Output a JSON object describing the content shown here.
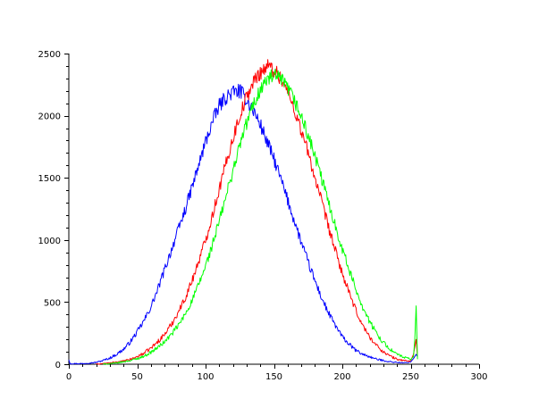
{
  "chart_data": {
    "type": "line",
    "title": "",
    "xlabel": "",
    "ylabel": "",
    "xlim": [
      0,
      300
    ],
    "ylim": [
      0,
      2500
    ],
    "grid": false,
    "legend": "none",
    "x_ticks": [
      "0",
      "50",
      "100",
      "150",
      "200",
      "250",
      "300"
    ],
    "y_ticks": [
      "0",
      "500",
      "1000",
      "1500",
      "2000",
      "2500"
    ],
    "x_tick_values": [
      0,
      50,
      100,
      150,
      200,
      250,
      300
    ],
    "y_tick_values": [
      0,
      500,
      1000,
      1500,
      2000,
      2500
    ],
    "x_minor_step": 10,
    "y_minor_step": 100,
    "series": [
      {
        "color": "#0000ff",
        "x": [
          0,
          1,
          5,
          10,
          15,
          20,
          25,
          30,
          35,
          40,
          45,
          50,
          55,
          60,
          65,
          70,
          75,
          80,
          85,
          90,
          95,
          100,
          105,
          110,
          115,
          120,
          125,
          130,
          135,
          140,
          145,
          150,
          155,
          160,
          165,
          170,
          175,
          180,
          185,
          190,
          195,
          200,
          205,
          210,
          215,
          220,
          225,
          230,
          235,
          240,
          245,
          250,
          252,
          254,
          255
        ],
        "y": [
          40,
          5,
          5,
          5,
          10,
          15,
          30,
          50,
          80,
          120,
          180,
          260,
          350,
          460,
          600,
          760,
          920,
          1080,
          1240,
          1420,
          1600,
          1790,
          1950,
          2080,
          2150,
          2190,
          2200,
          2130,
          2040,
          1930,
          1790,
          1650,
          1490,
          1320,
          1150,
          980,
          820,
          670,
          530,
          410,
          310,
          220,
          160,
          110,
          80,
          60,
          40,
          30,
          20,
          15,
          10,
          20,
          45,
          80,
          60
        ]
      },
      {
        "color": "#ff0000",
        "x": [
          20,
          30,
          40,
          45,
          50,
          55,
          60,
          65,
          70,
          75,
          80,
          85,
          90,
          95,
          100,
          105,
          110,
          115,
          120,
          125,
          130,
          135,
          140,
          145,
          150,
          155,
          160,
          165,
          170,
          175,
          180,
          185,
          190,
          195,
          200,
          205,
          210,
          215,
          220,
          225,
          230,
          235,
          240,
          245,
          250,
          252,
          254,
          255
        ],
        "y": [
          0,
          10,
          25,
          40,
          60,
          90,
          130,
          180,
          240,
          320,
          420,
          530,
          670,
          830,
          1000,
          1200,
          1410,
          1620,
          1820,
          2000,
          2150,
          2270,
          2350,
          2400,
          2370,
          2300,
          2190,
          2050,
          1880,
          1700,
          1500,
          1300,
          1100,
          910,
          730,
          570,
          430,
          310,
          220,
          150,
          100,
          65,
          40,
          30,
          25,
          80,
          200,
          60
        ]
      },
      {
        "color": "#00ff00",
        "x": [
          25,
          35,
          40,
          45,
          50,
          55,
          60,
          65,
          70,
          75,
          80,
          85,
          90,
          95,
          100,
          105,
          110,
          115,
          120,
          125,
          130,
          135,
          140,
          145,
          150,
          155,
          160,
          165,
          170,
          175,
          180,
          185,
          190,
          195,
          200,
          205,
          210,
          215,
          220,
          225,
          230,
          235,
          240,
          245,
          250,
          252,
          253,
          254,
          255
        ],
        "y": [
          0,
          10,
          20,
          30,
          45,
          65,
          95,
          135,
          180,
          240,
          310,
          400,
          510,
          640,
          790,
          960,
          1150,
          1350,
          1560,
          1760,
          1940,
          2090,
          2210,
          2290,
          2320,
          2290,
          2220,
          2120,
          1990,
          1840,
          1670,
          1490,
          1300,
          1110,
          930,
          760,
          600,
          460,
          340,
          250,
          175,
          120,
          80,
          55,
          40,
          60,
          200,
          470,
          40
        ]
      }
    ]
  }
}
